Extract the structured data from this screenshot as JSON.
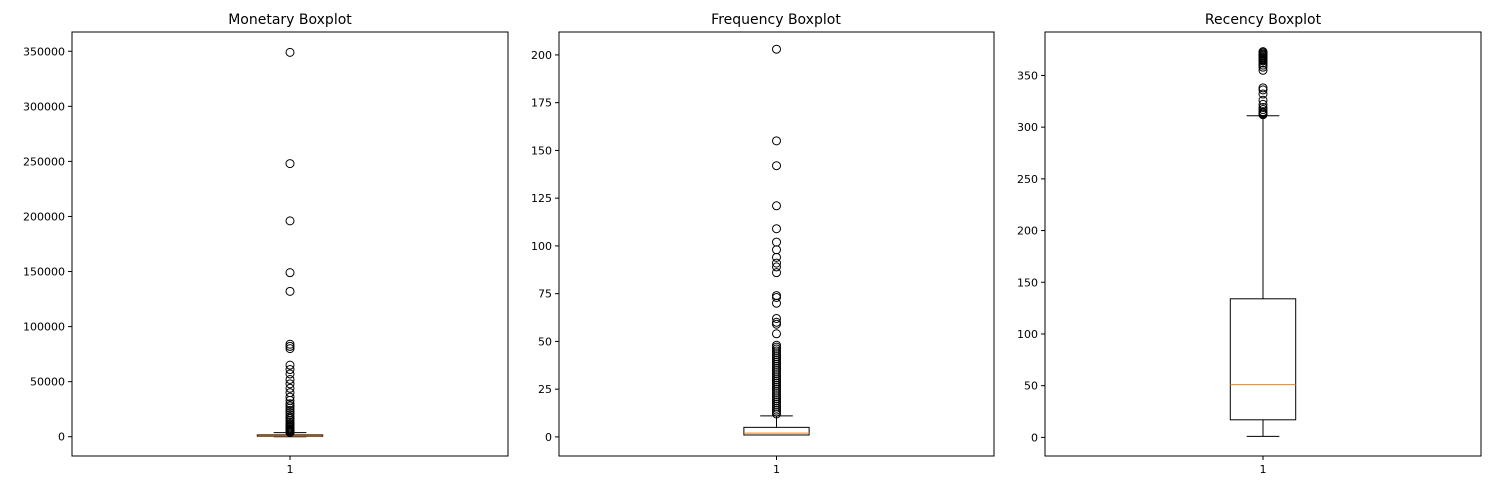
{
  "chart_data": [
    {
      "type": "boxplot",
      "title": "Monetary Boxplot",
      "xlabel": "",
      "ylabel": "",
      "categories": [
        "1"
      ],
      "ylim": [
        -17500,
        367500
      ],
      "yticks": [
        0,
        50000,
        100000,
        150000,
        200000,
        250000,
        300000,
        350000
      ],
      "grid": false,
      "box": {
        "whisker_low": 0,
        "q1": 300,
        "median": 670,
        "q3": 1660,
        "whisker_high": 3700
      },
      "outliers": [
        349000,
        248000,
        196000,
        149000,
        132000,
        84000,
        82000,
        80000,
        65000,
        61000,
        57000,
        52000,
        48000,
        44000,
        40000,
        36000,
        33000,
        30000,
        28000,
        26000,
        24000,
        22000,
        20000,
        18000,
        16500,
        15000,
        13500,
        12000,
        11000,
        10000,
        9000,
        8000,
        7000,
        6200,
        5500,
        4900,
        4300,
        3900
      ]
    },
    {
      "type": "boxplot",
      "title": "Frequency Boxplot",
      "xlabel": "",
      "ylabel": "",
      "categories": [
        "1"
      ],
      "ylim": [
        -10,
        212
      ],
      "yticks": [
        0,
        25,
        50,
        75,
        100,
        125,
        150,
        175,
        200
      ],
      "grid": false,
      "box": {
        "whisker_low": 1,
        "q1": 1,
        "median": 2,
        "q3": 5,
        "whisker_high": 11
      },
      "outliers": [
        203,
        155,
        142,
        121,
        109,
        102,
        98,
        94,
        91,
        89,
        86,
        74,
        73,
        70,
        62,
        60,
        59,
        54,
        48,
        47,
        46,
        45,
        44,
        43,
        42,
        41,
        40,
        39,
        38,
        37,
        36,
        35,
        34,
        33,
        32,
        31,
        30,
        29,
        28,
        27,
        26,
        25,
        24,
        23,
        22,
        21,
        20,
        19,
        18,
        17,
        16,
        15,
        14,
        13,
        12
      ]
    },
    {
      "type": "boxplot",
      "title": "Recency Boxplot",
      "xlabel": "",
      "ylabel": "",
      "categories": [
        "1"
      ],
      "ylim": [
        -18,
        392
      ],
      "yticks": [
        0,
        50,
        100,
        150,
        200,
        250,
        300,
        350
      ],
      "grid": false,
      "box": {
        "whisker_low": 1,
        "q1": 17,
        "median": 51,
        "q3": 134,
        "whisker_high": 311
      },
      "outliers": [
        373,
        372,
        371,
        370,
        369,
        368,
        367,
        366,
        365,
        364,
        362,
        360,
        358,
        355,
        338,
        336,
        332,
        326,
        322,
        319,
        317,
        315,
        314,
        313,
        312
      ]
    }
  ],
  "colors": {
    "box": "#000000",
    "median": "#ff7f0e",
    "flier": "#000000"
  }
}
